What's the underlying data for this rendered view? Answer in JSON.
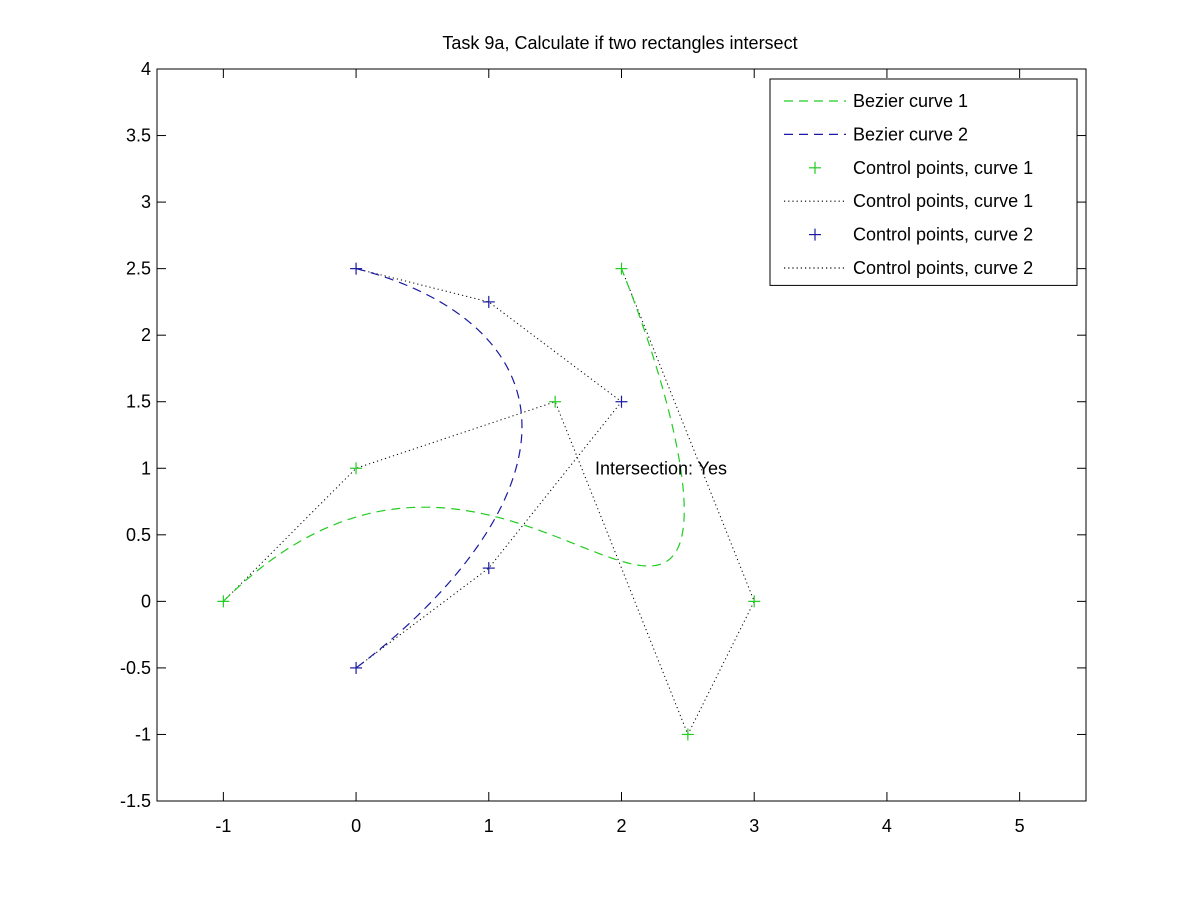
{
  "chart_data": {
    "type": "line",
    "title": "Task 9a, Calculate if two rectangles intersect",
    "xlabel": "",
    "ylabel": "",
    "xlim": [
      -1.5,
      5.5
    ],
    "ylim": [
      -1.5,
      4
    ],
    "xticks": [
      -1,
      0,
      1,
      2,
      3,
      4,
      5
    ],
    "xtick_labels": [
      "-1",
      "0",
      "1",
      "2",
      "3",
      "4",
      "5"
    ],
    "yticks": [
      -1.5,
      -1,
      -0.5,
      0,
      0.5,
      1,
      1.5,
      2,
      2.5,
      3,
      3.5,
      4
    ],
    "ytick_labels": [
      "-1.5",
      "-1",
      "-0.5",
      "0",
      "0.5",
      "1",
      "1.5",
      "2",
      "2.5",
      "3",
      "3.5",
      "4"
    ],
    "grid": false,
    "legend_position": "top-right",
    "annotation": {
      "text": "Intersection: Yes",
      "x": 1.8,
      "y": 1.0
    },
    "series": [
      {
        "name": "Bezier curve 1",
        "kind": "bezier",
        "style": "dashed",
        "color": "#22cc22",
        "control_points": [
          [
            -1,
            0
          ],
          [
            0,
            1
          ],
          [
            1.5,
            1.5
          ],
          [
            2.5,
            -1
          ],
          [
            3,
            0
          ],
          [
            2,
            2.5
          ]
        ]
      },
      {
        "name": "Bezier curve 2",
        "kind": "bezier",
        "style": "dashed",
        "color": "#1a1aa0",
        "control_points": [
          [
            0,
            2.5
          ],
          [
            1,
            2.25
          ],
          [
            2,
            1.5
          ],
          [
            1,
            0.25
          ],
          [
            0,
            -0.5
          ]
        ]
      },
      {
        "name": "Control points, curve 1",
        "kind": "markers",
        "marker": "+",
        "color": "#22cc22",
        "x": [
          -1,
          0,
          1.5,
          2.5,
          3,
          2
        ],
        "y": [
          0,
          1,
          1.5,
          -1,
          0,
          2.5
        ]
      },
      {
        "name": "Control points, curve 1",
        "kind": "polyline",
        "style": "dotted",
        "color": "#000000",
        "x": [
          -1,
          0,
          1.5,
          2.5,
          3,
          2
        ],
        "y": [
          0,
          1,
          1.5,
          -1,
          0,
          2.5
        ]
      },
      {
        "name": "Control points, curve 2",
        "kind": "markers",
        "marker": "+",
        "color": "#1a1aa0",
        "x": [
          0,
          1,
          2,
          1,
          0
        ],
        "y": [
          2.5,
          2.25,
          1.5,
          0.25,
          -0.5
        ]
      },
      {
        "name": "Control points, curve 2",
        "kind": "polyline",
        "style": "dotted",
        "color": "#000000",
        "x": [
          0,
          1,
          2,
          1,
          0
        ],
        "y": [
          2.5,
          2.25,
          1.5,
          0.25,
          -0.5
        ]
      }
    ]
  }
}
